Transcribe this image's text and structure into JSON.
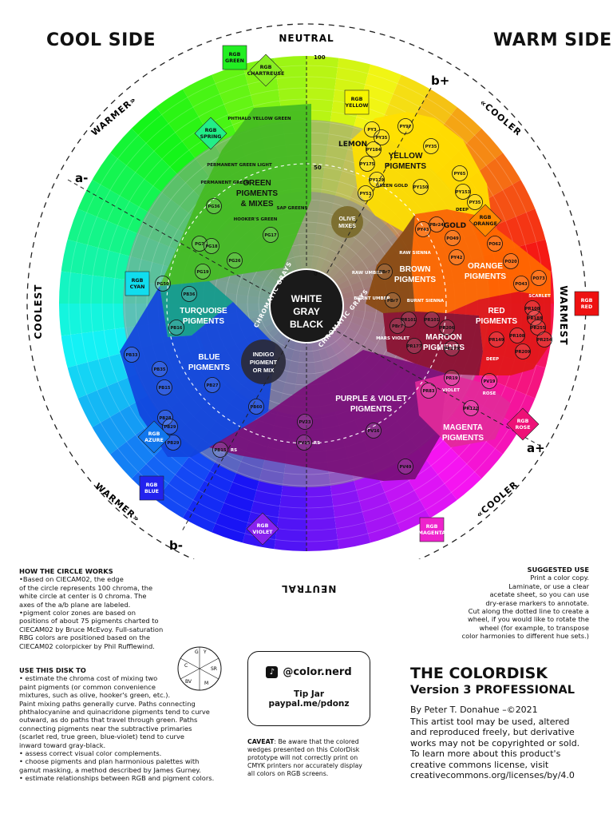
{
  "headings": {
    "cool_side": "COOL SIDE",
    "warm_side": "WARM SIDE",
    "neutral_top": "NEUTRAL",
    "neutral_bottom": "NEUTRAL",
    "coolest": "COOLEST",
    "warmest": "WARMEST",
    "warmer_tl": "WARMER»",
    "warmer_bl": "WARMER»",
    "cooler_tr": "«COOLER",
    "cooler_br": "«COOLER"
  },
  "axes": {
    "a_minus": "a-",
    "a_plus": "a+",
    "b_minus": "b-",
    "b_plus": "b+",
    "tick_100": "100",
    "tick_50": "50",
    "tick_0": "0"
  },
  "center": {
    "line1": "WHITE",
    "line2": "GRAY",
    "line3": "BLACK",
    "chromatic_grays_left": "CHROMATIC GRAYS",
    "chromatic_grays_right": "CHROMATIC GRAYS"
  },
  "rgb_markers": [
    {
      "label1": "RGB",
      "label2": "GREEN",
      "color": "#22ee22"
    },
    {
      "label1": "RGB",
      "label2": "CHARTREUSE",
      "color": "#88ee22"
    },
    {
      "label1": "RGB",
      "label2": "YELLOW",
      "color": "#f5f500"
    },
    {
      "label1": "RGB",
      "label2": "ORANGE",
      "color": "#ff8800"
    },
    {
      "label1": "RGB",
      "label2": "RED",
      "color": "#ee1111"
    },
    {
      "label1": "RGB",
      "label2": "ROSE",
      "color": "#ee1177"
    },
    {
      "label1": "RGB",
      "label2": "MAGENTA",
      "color": "#ee22cc"
    },
    {
      "label1": "RGB",
      "label2": "VIOLET",
      "color": "#8822ee"
    },
    {
      "label1": "RGB",
      "label2": "BLUE",
      "color": "#2222ee"
    },
    {
      "label1": "RGB",
      "label2": "AZURE",
      "color": "#1177ee"
    },
    {
      "label1": "RGB",
      "label2": "CYAN",
      "color": "#11ddee"
    },
    {
      "label1": "RGB",
      "label2": "SPRING",
      "color": "#22ee88"
    }
  ],
  "zones": {
    "green": {
      "l1": "GREEN",
      "l2": "PIGMENTS",
      "l3": "& MIXES",
      "color": "#44bb22"
    },
    "turquoise": {
      "l1": "TURQUOISE",
      "l2": "PIGMENTS",
      "color": "#139a8c"
    },
    "blue": {
      "l1": "BLUE",
      "l2": "PIGMENTS",
      "color": "#1144dd"
    },
    "indigo": {
      "l1": "INDIGO",
      "l2": "PIGMENT",
      "l3": "OR MIX",
      "color": "#2a2a3a"
    },
    "purple": {
      "l1": "PURPLE & VIOLET",
      "l2": "PIGMENTS",
      "color": "#7a0f78"
    },
    "magenta": {
      "l1": "MAGENTA",
      "l2": "PIGMENTS",
      "color": "#e22a9a"
    },
    "maroon": {
      "l1": "MAROON",
      "l2": "PIGMENTS",
      "color": "#8a1030"
    },
    "red": {
      "l1": "RED",
      "l2": "PIGMENTS",
      "color": "#e01818"
    },
    "orange": {
      "l1": "ORANGE",
      "l2": "PIGMENTS",
      "color": "#ff6a00"
    },
    "brown": {
      "l1": "BROWN",
      "l2": "PIGMENTS",
      "color": "#8a4a10"
    },
    "yellow": {
      "l1": "YELLOW",
      "l2": "PIGMENTS",
      "color": "#ffe000"
    },
    "olive": {
      "l1": "OLIVE",
      "l2": "MIXES",
      "color": "#7a6a2a"
    }
  },
  "small_labels": {
    "lemon": "LEMON",
    "gold": "GOLD",
    "deep_orange": "DEEP",
    "scarlet": "SCARLET",
    "deep_red": "DEEP",
    "violet": "VIOLET",
    "rose": "ROSE",
    "mars_violet": "MARS VIOLET",
    "burnt_umber": "BURNT UMBER",
    "burnt_sienna": "BURNT SIENNA",
    "raw_umber": "RAW UMBER",
    "raw_sienna": "RAW SIENNA",
    "green_gold": "GREEN GOLD",
    "phthalo_yg": "PHTHALO YELLOW GREEN",
    "perm_green_light": "PERMANENT GREEN LIGHT",
    "perm_green": "PERMANENT GREEN",
    "hookers_green": "HOOKER'S GREEN",
    "sap_greens": "SAP GREENS",
    "rs1": "RS",
    "rs2": "RS"
  },
  "pigments": [
    "PY3",
    "PY35",
    "PY184",
    "PY175",
    "PY129",
    "PY53",
    "PY97",
    "PY35",
    "PY65",
    "PY153",
    "PY150",
    "PY35",
    "PBr24",
    "PY43",
    "PO49",
    "PY42",
    "PO62",
    "PO20",
    "PO43",
    "PO73",
    "PR108",
    "PR188",
    "PR255",
    "PR254",
    "PR149",
    "PR209",
    "PR108",
    "PR101",
    "PR206",
    "PR179",
    "PBr7",
    "PBr7",
    "PR101",
    "PBr7",
    "PR177",
    "PR19",
    "PR83",
    "PV19",
    "PR122",
    "PV16",
    "PV49",
    "PV23",
    "PV15",
    "PB15",
    "PB60",
    "PB27",
    "PB35",
    "PB33",
    "PB15",
    "PB28",
    "PB29",
    "PB29",
    "PB36",
    "PB16",
    "PG50",
    "PG36",
    "PG7",
    "PG18",
    "PG19",
    "PG26",
    "PG17"
  ],
  "notes": {
    "how_title": "HOW THE CIRCLE WORKS",
    "how_lines": [
      "•Based on CIECAM02, the edge",
      "of the circle represents 100 chroma, the",
      "white circle at center is 0 chroma. The",
      "axes of the a/b plane are labeled.",
      "•pigment color zones are based on",
      "positions of about 75 pigments charted to",
      "CIECAM02 by Bruce McEvoy. Full-saturation",
      "RBG colors are positioned based on the",
      "CIECAM02 colorpicker by Phil Rufflewind."
    ],
    "use_title": "USE THIS DISK TO",
    "use_lines": [
      "• estimate the chroma cost of mixing two",
      "paint pigments (or common convenience",
      "mixtures, such as olive, hooker's green, etc.).",
      "Paint mixing paths generally curve. Paths connecting",
      "phthalocyanine and quinacridone pigments tend to curve",
      "outward, as do paths that travel through green. Paths",
      "connecting pigments near the subtractive primaries",
      "(scarlet red, true green, blue-violet) tend to curve",
      "inward toward gray-black.",
      "• assess correct visual color complements.",
      "• choose pigments and plan harmonious palettes with",
      "gamut masking, a method described by James Gurney.",
      "• estimate relationships between RGB and pigment colors."
    ],
    "suggested_title": "SUGGESTED USE",
    "suggested_lines": [
      "Print a color copy.",
      "Laminate, or use a clear",
      "acetate sheet, so you can use",
      "dry-erase markers to annotate.",
      "Cut along the dotted line to create a",
      "wheel, if you would like to rotate the",
      "wheel (for example, to transpose",
      "color harmonies to different hue sets.)"
    ],
    "caveat_title": "CAVEAT",
    "caveat_lines": [
      ": Be aware that the colored",
      "wedges presented on this ColorDisk",
      "prototype will not correctly print on",
      "CMYK printers nor accurately display",
      "all colors on RGB screens."
    ]
  },
  "mini_wheel": [
    "G",
    "Y",
    "C",
    "SR",
    "BV",
    "M"
  ],
  "tipjar": {
    "handle": "@color.nerd",
    "title": "Tip Jar",
    "link": "paypal.me/pdonz"
  },
  "product": {
    "title": "THE COLORDISK",
    "version": "Version 3 PROFESSIONAL",
    "byline": "By Peter T. Donahue –©2021",
    "license_lines": [
      "This artist tool may be used, altered",
      "and reproduced freely, but derivative",
      "works may not be copyrighted or sold.",
      "To learn more about this product's",
      "creative commons license, visit",
      "creativecommons.org/licenses/by/4.0"
    ]
  }
}
